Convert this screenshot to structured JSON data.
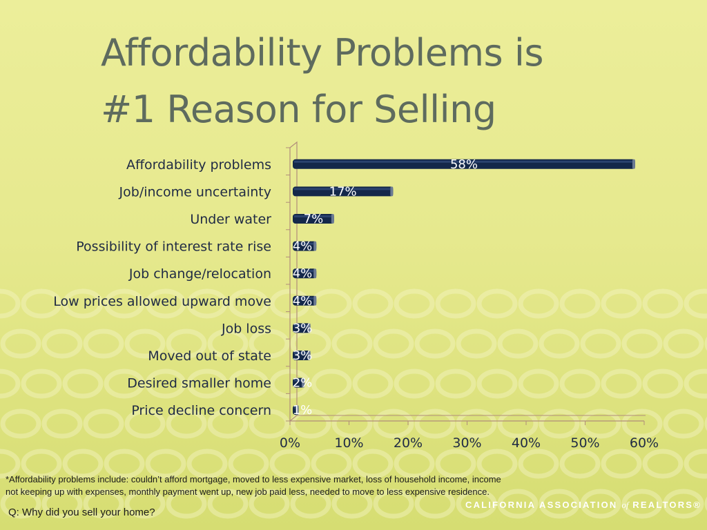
{
  "slide": {
    "title_line1": "Affordability Problems is",
    "title_line2": "#1 Reason for Selling",
    "footnote_line1": "*Affordability problems include: couldn’t afford mortgage, moved to less expensive market, loss of household income, income",
    "footnote_line2": "not keeping up with expenses, monthly payment went up, new job paid less, needed to move to less expensive residence.",
    "question": "Q: Why did you sell your home?",
    "logo": {
      "part1": "CALIFORNIA ASSOCIATION",
      "part2": "of",
      "part3": "REALTORS®"
    }
  },
  "colors": {
    "bar": "#14284a",
    "axis": "#b08c7a",
    "text": "#1f2a44",
    "title": "#5e6b5e"
  },
  "chart_data": {
    "type": "bar",
    "orientation": "horizontal",
    "categories": [
      "Affordability problems",
      "Job/income uncertainty",
      "Under water",
      "Possibility of interest rate rise",
      "Job change/relocation",
      "Low prices allowed upward move",
      "Job loss",
      "Moved out of state",
      "Desired smaller home",
      "Price decline concern"
    ],
    "values": [
      58,
      17,
      7,
      4,
      4,
      4,
      3,
      3,
      2,
      1
    ],
    "data_labels": [
      "58%",
      "17%",
      "7%",
      "4%",
      "4%",
      "4%",
      "3%",
      "3%",
      "2%",
      "1%"
    ],
    "xlim": [
      0,
      60
    ],
    "xticks": [
      0,
      10,
      20,
      30,
      40,
      50,
      60
    ],
    "xtick_labels": [
      "0%",
      "10%",
      "20%",
      "30%",
      "40%",
      "50%",
      "60%"
    ],
    "grid": false,
    "legend": "none"
  }
}
